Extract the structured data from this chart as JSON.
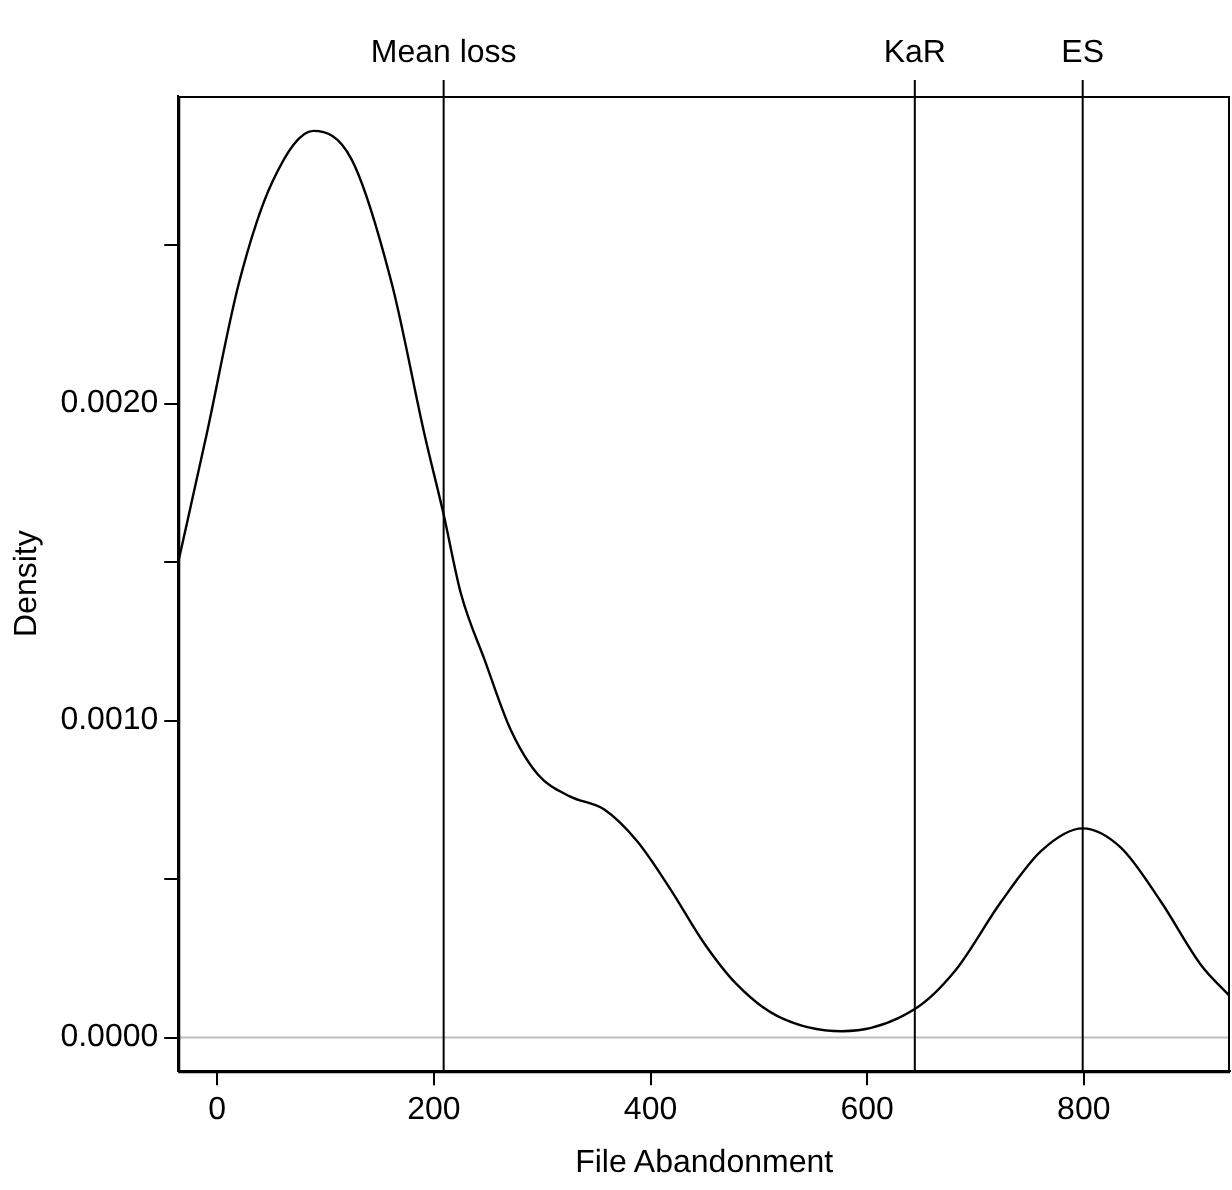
{
  "chart_data": {
    "type": "line",
    "xlabel": "File Abandonment",
    "ylabel": "Density",
    "xlim": [
      -36,
      935
    ],
    "ylim": [
      -0.000106,
      0.00297
    ],
    "xticks": [
      0,
      200,
      400,
      600,
      800
    ],
    "yticks": [
      {
        "value": 0,
        "label": "0.0000"
      },
      {
        "value": 0.0005,
        "label": null
      },
      {
        "value": 0.001,
        "label": "0.0010"
      },
      {
        "value": 0.0015,
        "label": null
      },
      {
        "value": 0.002,
        "label": "0.0020"
      },
      {
        "value": 0.0025,
        "label": null
      }
    ],
    "grid": false,
    "legend": false,
    "series": [
      {
        "color": "#000000",
        "x": [
          -36,
          -10,
          20,
          51,
          88.7,
          124,
          161,
          191.5,
          209,
          225,
          247,
          271,
          296,
          326,
          357,
          387.5,
          418,
          449,
          479,
          516,
          577,
          644,
          681,
          724,
          761,
          799,
          834,
          871,
          908,
          935
        ],
        "values": [
          0.0015,
          0.0019,
          0.00238,
          0.0027,
          0.00286,
          0.00277,
          0.00238,
          0.0019,
          0.00165,
          0.0014,
          0.00119,
          0.00097,
          0.00083,
          0.00076,
          0.00072,
          0.00062,
          0.00047,
          0.0003,
          0.00017,
          7e-05,
          2e-05,
          9e-05,
          0.00021,
          0.00043,
          0.00059,
          0.00066,
          0.0006,
          0.00043,
          0.00023,
          0.00013
        ]
      }
    ],
    "ref_lines": [
      {
        "axis": "y",
        "value": 0,
        "color": "#bebebe"
      },
      {
        "axis": "x",
        "value": 209,
        "label": "Mean loss",
        "color": "#000000"
      },
      {
        "axis": "x",
        "value": 644,
        "label": "KaR",
        "color": "#000000"
      },
      {
        "axis": "x",
        "value": 799,
        "label": "ES",
        "color": "#000000"
      }
    ]
  }
}
